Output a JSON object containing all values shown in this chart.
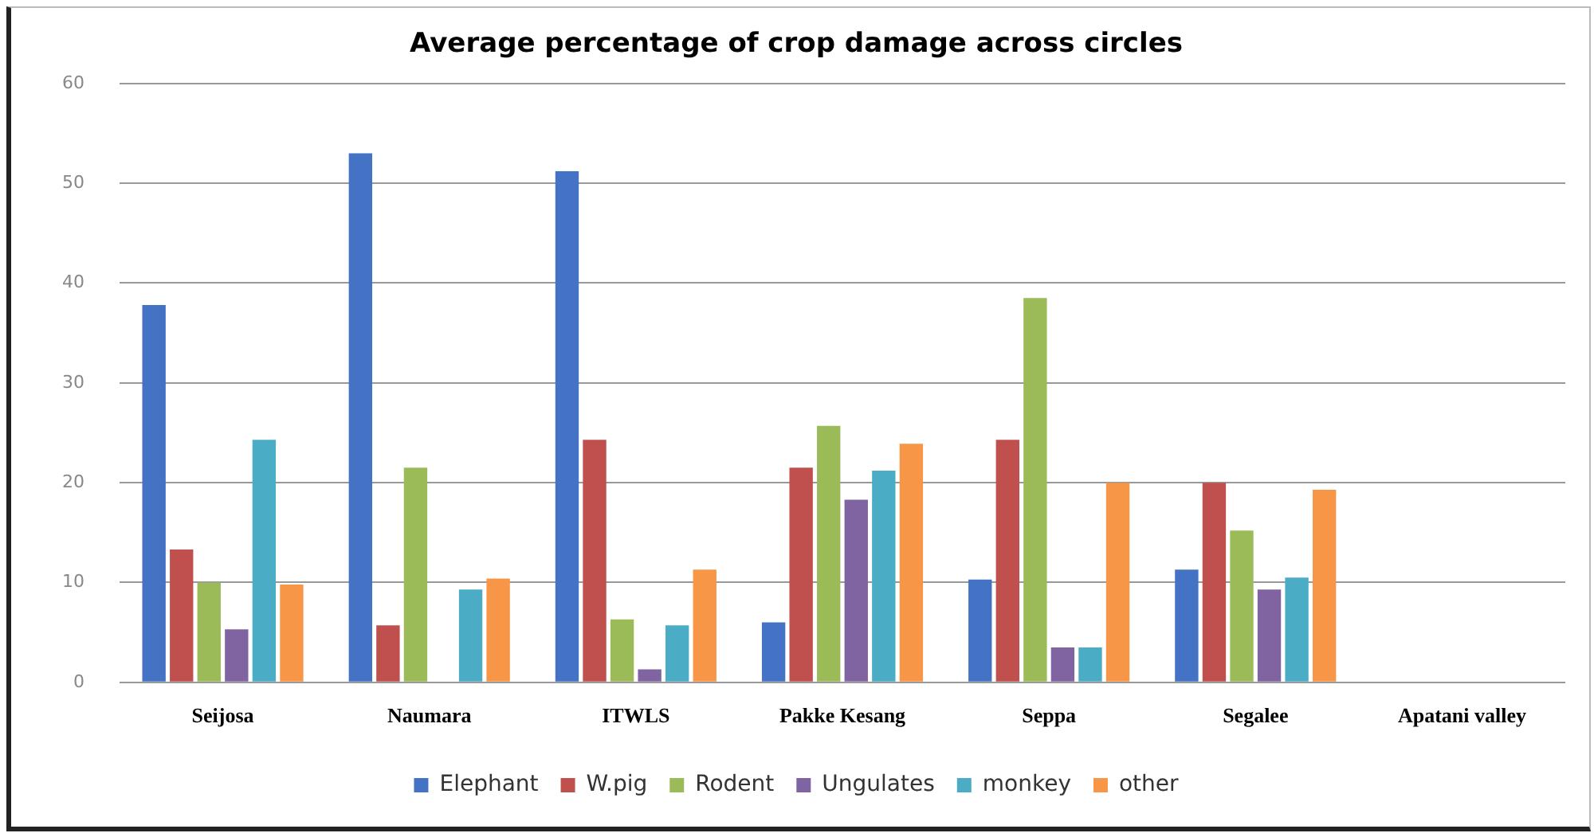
{
  "chart_data": {
    "type": "bar",
    "title": "Average percentage of crop damage across circles",
    "categories": [
      "Seijosa",
      "Naumara",
      "ITWLS",
      "Pakke Kesang",
      "Seppa",
      "Segalee",
      "Apatani valley"
    ],
    "series": [
      {
        "name": "Elephant",
        "color": "#4472c4",
        "values": [
          37.8,
          53,
          51.2,
          6,
          10.3,
          11.3,
          null
        ]
      },
      {
        "name": "W.pig",
        "color": "#c0504d",
        "values": [
          13.3,
          5.7,
          24.3,
          21.5,
          24.3,
          20,
          null
        ]
      },
      {
        "name": "Rodent",
        "color": "#9bbb59",
        "values": [
          10,
          21.5,
          6.3,
          25.7,
          38.5,
          15.2,
          null
        ]
      },
      {
        "name": "Ungulates",
        "color": "#8064a2",
        "values": [
          5.3,
          null,
          1.3,
          18.3,
          3.5,
          9.3,
          null
        ]
      },
      {
        "name": "monkey",
        "color": "#4bacc6",
        "values": [
          24.3,
          9.3,
          5.7,
          21.2,
          3.5,
          10.5,
          null
        ]
      },
      {
        "name": "other",
        "color": "#f79646",
        "values": [
          9.8,
          10.4,
          11.3,
          23.9,
          20,
          19.3,
          null
        ]
      }
    ],
    "ylim": [
      0,
      60
    ],
    "yticks": [
      0,
      10,
      20,
      30,
      40,
      50,
      60
    ],
    "grid": "y",
    "legend": "bottom"
  }
}
